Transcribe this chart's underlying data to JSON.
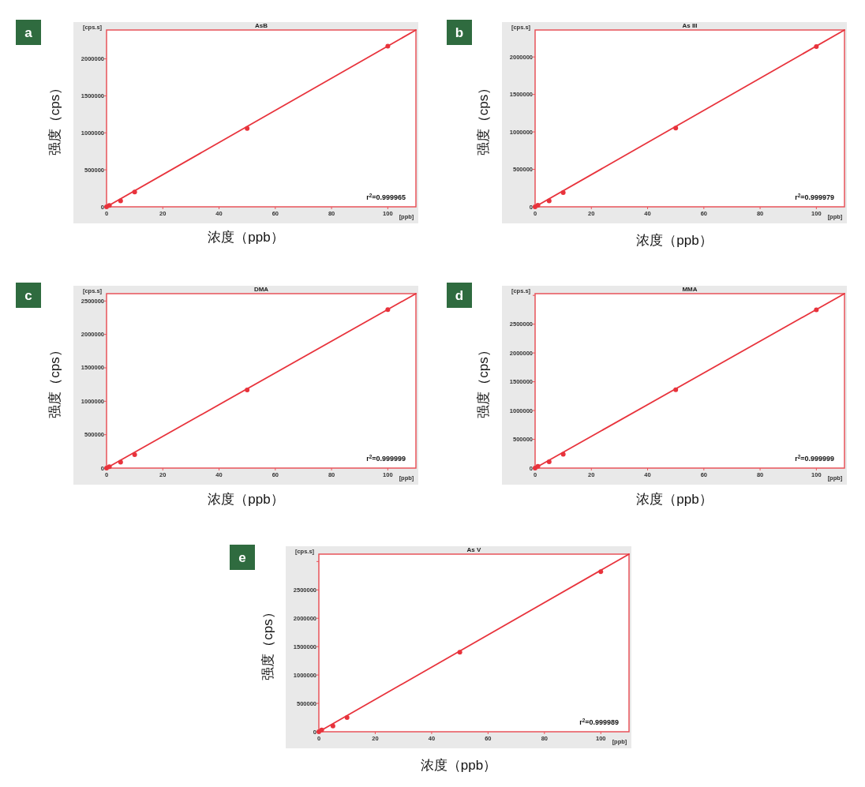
{
  "chart_data": [
    {
      "type": "scatter",
      "title": "AsB",
      "xlabel": "浓度（ppb）",
      "ylabel": "强度（cps）",
      "annotations": [
        "a",
        "[cps.s]",
        "[ppb]",
        "r$^{2}$=0.999965"
      ],
      "xlim": [
        0,
        110
      ],
      "ylim": [
        0,
        2390000
      ],
      "xticks": [
        0,
        20,
        40,
        60,
        80,
        100
      ],
      "yticks": [
        0,
        500000,
        1000000,
        1500000,
        2000000
      ],
      "series": [
        {
          "type": "scatter",
          "color": "#e8333c",
          "marker": "circle",
          "x": [
            0,
            1,
            5,
            10,
            50,
            100
          ],
          "values": [
            0,
            20000,
            80000,
            200000,
            1060000,
            2170000
          ]
        },
        {
          "type": "line",
          "color": "#e8333c",
          "marker": "none",
          "x": [
            0,
            110
          ],
          "values": [
            0,
            2390000
          ]
        }
      ]
    },
    {
      "type": "scatter",
      "title": "As III",
      "xlabel": "浓度（ppb）",
      "ylabel": "强度（cps）",
      "annotations": [
        "b",
        "[cps.s]",
        "[ppb]",
        "r$^{2}$=0.999979"
      ],
      "xlim": [
        0,
        110
      ],
      "ylim": [
        0,
        2360000
      ],
      "xticks": [
        0,
        20,
        40,
        60,
        80,
        100
      ],
      "yticks": [
        0,
        500000,
        1000000,
        1500000,
        2000000
      ],
      "series": [
        {
          "type": "scatter",
          "color": "#e8333c",
          "marker": "circle",
          "x": [
            0,
            1,
            5,
            10,
            50,
            100
          ],
          "values": [
            0,
            20000,
            80000,
            190000,
            1050000,
            2140000
          ]
        },
        {
          "type": "line",
          "color": "#e8333c",
          "marker": "none",
          "x": [
            0,
            110
          ],
          "values": [
            0,
            2360000
          ]
        }
      ]
    },
    {
      "type": "scatter",
      "title": "DMA",
      "xlabel": "浓度（ppb）",
      "ylabel": "强度（cps）",
      "annotations": [
        "c",
        "[cps.s]",
        "[ppb]",
        "r$^{2}$=0.999999"
      ],
      "xlim": [
        0,
        110
      ],
      "ylim": [
        0,
        2610000
      ],
      "xticks": [
        0,
        20,
        40,
        60,
        80,
        100
      ],
      "yticks": [
        0,
        500000,
        1000000,
        1500000,
        2000000,
        2500000
      ],
      "series": [
        {
          "type": "scatter",
          "color": "#e8333c",
          "marker": "circle",
          "x": [
            0,
            1,
            5,
            10,
            50,
            100
          ],
          "values": [
            0,
            20000,
            90000,
            200000,
            1170000,
            2370000
          ]
        },
        {
          "type": "line",
          "color": "#e8333c",
          "marker": "none",
          "x": [
            0,
            110
          ],
          "values": [
            0,
            2610000
          ]
        }
      ]
    },
    {
      "type": "scatter",
      "title": "MMA",
      "xlabel": "浓度（ppb）",
      "ylabel": "强度（cps）",
      "annotations": [
        "d",
        "[cps.s]",
        "[ppb]",
        "r$^{2}$=0.999999"
      ],
      "xlim": [
        0,
        110
      ],
      "ylim": [
        0,
        3030000
      ],
      "xticks": [
        0,
        20,
        40,
        60,
        80,
        100
      ],
      "yticks": [
        0,
        500000,
        1000000,
        1500000,
        2000000,
        2500000,
        {
          "value": 3000000,
          "label": null
        }
      ],
      "series": [
        {
          "type": "scatter",
          "color": "#e8333c",
          "marker": "circle",
          "x": [
            0,
            1,
            5,
            10,
            50,
            100
          ],
          "values": [
            0,
            30000,
            110000,
            240000,
            1360000,
            2750000
          ]
        },
        {
          "type": "line",
          "color": "#e8333c",
          "marker": "none",
          "x": [
            0,
            110
          ],
          "values": [
            0,
            3030000
          ]
        }
      ]
    },
    {
      "type": "scatter",
      "title": "As V",
      "xlabel": "浓度（ppb）",
      "ylabel": "强度（cps）",
      "annotations": [
        "e",
        "[cps.s]",
        "[ppb]",
        "r$^{2}$=0.999989"
      ],
      "xlim": [
        0,
        110
      ],
      "ylim": [
        0,
        3130000
      ],
      "xticks": [
        0,
        20,
        40,
        60,
        80,
        100
      ],
      "yticks": [
        0,
        500000,
        1000000,
        1500000,
        2000000,
        2500000,
        {
          "value": 3000000,
          "label": null
        }
      ],
      "series": [
        {
          "type": "scatter",
          "color": "#e8333c",
          "marker": "circle",
          "x": [
            0,
            1,
            5,
            10,
            50,
            100
          ],
          "values": [
            0,
            30000,
            100000,
            250000,
            1400000,
            2820000
          ]
        },
        {
          "type": "line",
          "color": "#e8333c",
          "marker": "none",
          "x": [
            0,
            110
          ],
          "values": [
            0,
            3130000
          ]
        }
      ]
    }
  ]
}
